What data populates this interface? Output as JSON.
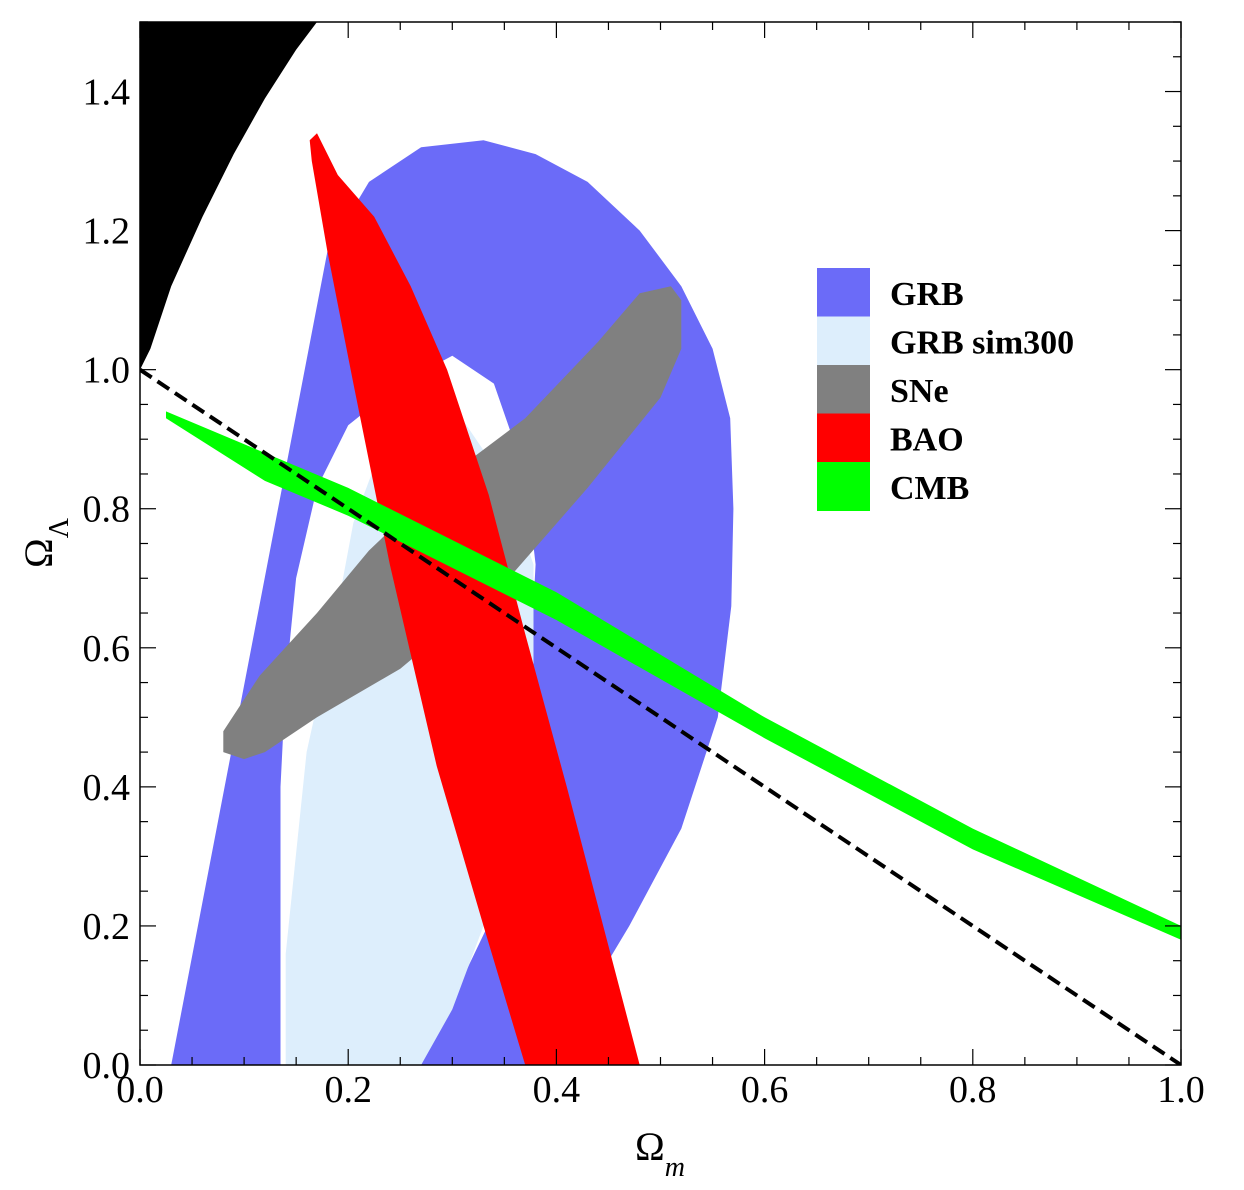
{
  "chart_data": {
    "type": "contour",
    "xlabel": "Ω_m",
    "ylabel": "Ω_Λ",
    "xlim": [
      0.0,
      1.0
    ],
    "ylim": [
      0.0,
      1.5
    ],
    "x_ticks": [
      "0.0",
      "0.2",
      "0.4",
      "0.6",
      "0.8",
      "1.0"
    ],
    "y_ticks": [
      "0.0",
      "0.2",
      "0.4",
      "0.6",
      "0.8",
      "1.0",
      "1.2",
      "1.4"
    ],
    "legend_position": "right",
    "series": [
      {
        "name": "GRB",
        "color": "#6b6bf8",
        "points": [
          [
            0.03,
            0.0
          ],
          [
            0.18,
            1.17
          ],
          [
            0.22,
            1.27
          ],
          [
            0.27,
            1.32
          ],
          [
            0.33,
            1.33
          ],
          [
            0.38,
            1.31
          ],
          [
            0.43,
            1.27
          ],
          [
            0.48,
            1.2
          ],
          [
            0.52,
            1.12
          ],
          [
            0.55,
            1.03
          ],
          [
            0.567,
            0.93
          ],
          [
            0.57,
            0.8
          ],
          [
            0.568,
            0.66
          ],
          [
            0.555,
            0.5
          ],
          [
            0.52,
            0.34
          ],
          [
            0.47,
            0.2
          ],
          [
            0.43,
            0.1
          ],
          [
            0.4,
            0.0
          ],
          [
            0.27,
            0.0
          ],
          [
            0.35,
            0.25
          ],
          [
            0.372,
            0.5
          ],
          [
            0.38,
            0.72
          ],
          [
            0.37,
            0.85
          ],
          [
            0.34,
            0.98
          ],
          [
            0.3,
            1.02
          ],
          [
            0.25,
            0.98
          ],
          [
            0.2,
            0.92
          ],
          [
            0.17,
            0.83
          ],
          [
            0.15,
            0.7
          ],
          [
            0.14,
            0.55
          ],
          [
            0.135,
            0.4
          ],
          [
            0.135,
            0.0
          ]
        ]
      },
      {
        "name": "GRB sim300",
        "color": "#ddeefc",
        "points": [
          [
            0.14,
            0.0
          ],
          [
            0.14,
            0.16
          ],
          [
            0.16,
            0.45
          ],
          [
            0.185,
            0.62
          ],
          [
            0.205,
            0.78
          ],
          [
            0.225,
            0.86
          ],
          [
            0.24,
            0.95
          ],
          [
            0.265,
            0.99
          ],
          [
            0.29,
            0.98
          ],
          [
            0.3,
            0.95
          ],
          [
            0.35,
            0.84
          ],
          [
            0.378,
            0.72
          ],
          [
            0.378,
            0.55
          ],
          [
            0.36,
            0.38
          ],
          [
            0.33,
            0.2
          ],
          [
            0.3,
            0.08
          ],
          [
            0.27,
            0.0
          ]
        ]
      },
      {
        "name": "SNe",
        "color": "#808080",
        "points": [
          [
            0.08,
            0.45
          ],
          [
            0.08,
            0.48
          ],
          [
            0.115,
            0.56
          ],
          [
            0.17,
            0.65
          ],
          [
            0.22,
            0.74
          ],
          [
            0.29,
            0.84
          ],
          [
            0.37,
            0.93
          ],
          [
            0.44,
            1.04
          ],
          [
            0.48,
            1.11
          ],
          [
            0.51,
            1.12
          ],
          [
            0.52,
            1.1
          ],
          [
            0.52,
            1.03
          ],
          [
            0.5,
            0.96
          ],
          [
            0.43,
            0.83
          ],
          [
            0.36,
            0.71
          ],
          [
            0.29,
            0.62
          ],
          [
            0.25,
            0.57
          ],
          [
            0.17,
            0.5
          ],
          [
            0.12,
            0.45
          ],
          [
            0.1,
            0.44
          ]
        ]
      },
      {
        "name": "BAO",
        "color": "#ff0000",
        "points": [
          [
            0.163,
            1.33
          ],
          [
            0.17,
            1.34
          ],
          [
            0.19,
            1.28
          ],
          [
            0.225,
            1.22
          ],
          [
            0.26,
            1.12
          ],
          [
            0.295,
            1.0
          ],
          [
            0.335,
            0.82
          ],
          [
            0.37,
            0.62
          ],
          [
            0.41,
            0.4
          ],
          [
            0.445,
            0.2
          ],
          [
            0.48,
            0.0
          ],
          [
            0.37,
            0.0
          ],
          [
            0.33,
            0.2
          ],
          [
            0.285,
            0.43
          ],
          [
            0.24,
            0.72
          ],
          [
            0.205,
            0.98
          ],
          [
            0.18,
            1.17
          ],
          [
            0.165,
            1.3
          ]
        ]
      },
      {
        "name": "CMB",
        "color": "#00ff00",
        "points": [
          [
            0.025,
            0.94
          ],
          [
            0.2,
            0.83
          ],
          [
            0.4,
            0.68
          ],
          [
            0.6,
            0.5
          ],
          [
            0.8,
            0.34
          ],
          [
            1.0,
            0.2
          ],
          [
            1.0,
            0.18
          ],
          [
            0.8,
            0.31
          ],
          [
            0.6,
            0.47
          ],
          [
            0.4,
            0.64
          ],
          [
            0.2,
            0.79
          ],
          [
            0.12,
            0.84
          ],
          [
            0.025,
            0.93
          ]
        ]
      },
      {
        "name": "",
        "color": "#000000",
        "points": [
          [
            0.0,
            1.0
          ],
          [
            0.01,
            1.03
          ],
          [
            0.03,
            1.12
          ],
          [
            0.06,
            1.22
          ],
          [
            0.09,
            1.31
          ],
          [
            0.12,
            1.39
          ],
          [
            0.15,
            1.46
          ],
          [
            0.17,
            1.5
          ],
          [
            0.0,
            1.5
          ]
        ]
      }
    ],
    "flat_universe_line": {
      "style": "dashed",
      "color": "#000000",
      "x": [
        0.0,
        1.0
      ],
      "y": [
        1.0,
        0.0
      ]
    }
  }
}
